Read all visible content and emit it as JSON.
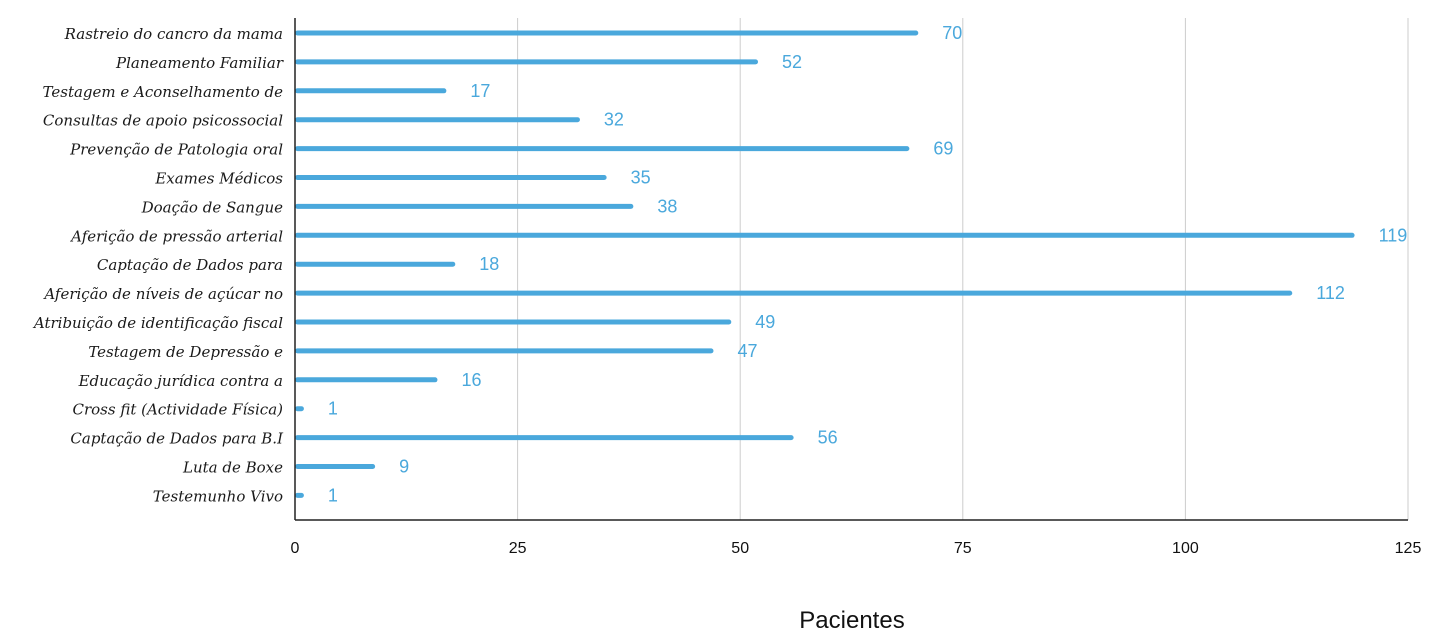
{
  "chart_data": {
    "type": "bar",
    "orientation": "horizontal",
    "title": "",
    "xlabel": "Pacientes",
    "ylabel": "",
    "xlim": [
      0,
      125
    ],
    "xticks": [
      0,
      25,
      50,
      75,
      100,
      125
    ],
    "grid": "vertical",
    "bar_color": "#4aa8dc",
    "categories": [
      "Rastreio do cancro da mama",
      "Planeamento Familiar",
      "Testagem e Aconselhamento de",
      "Consultas de apoio psicossocial",
      "Prevenção de Patologia oral",
      "Exames Médicos",
      "Doação de Sangue",
      "Aferição de pressão arterial",
      "Captação de Dados para",
      "Aferição de níveis de açúcar no",
      "Atribuição de identificação fiscal",
      "Testagem de Depressão e",
      "Educação jurídica contra a",
      "Cross fit (Actividade Física)",
      "Captação de Dados para B.I",
      "Luta de Boxe",
      "Testemunho Vivo"
    ],
    "values": [
      70,
      52,
      17,
      32,
      69,
      35,
      38,
      119,
      18,
      112,
      49,
      47,
      16,
      1,
      56,
      9,
      1
    ]
  }
}
